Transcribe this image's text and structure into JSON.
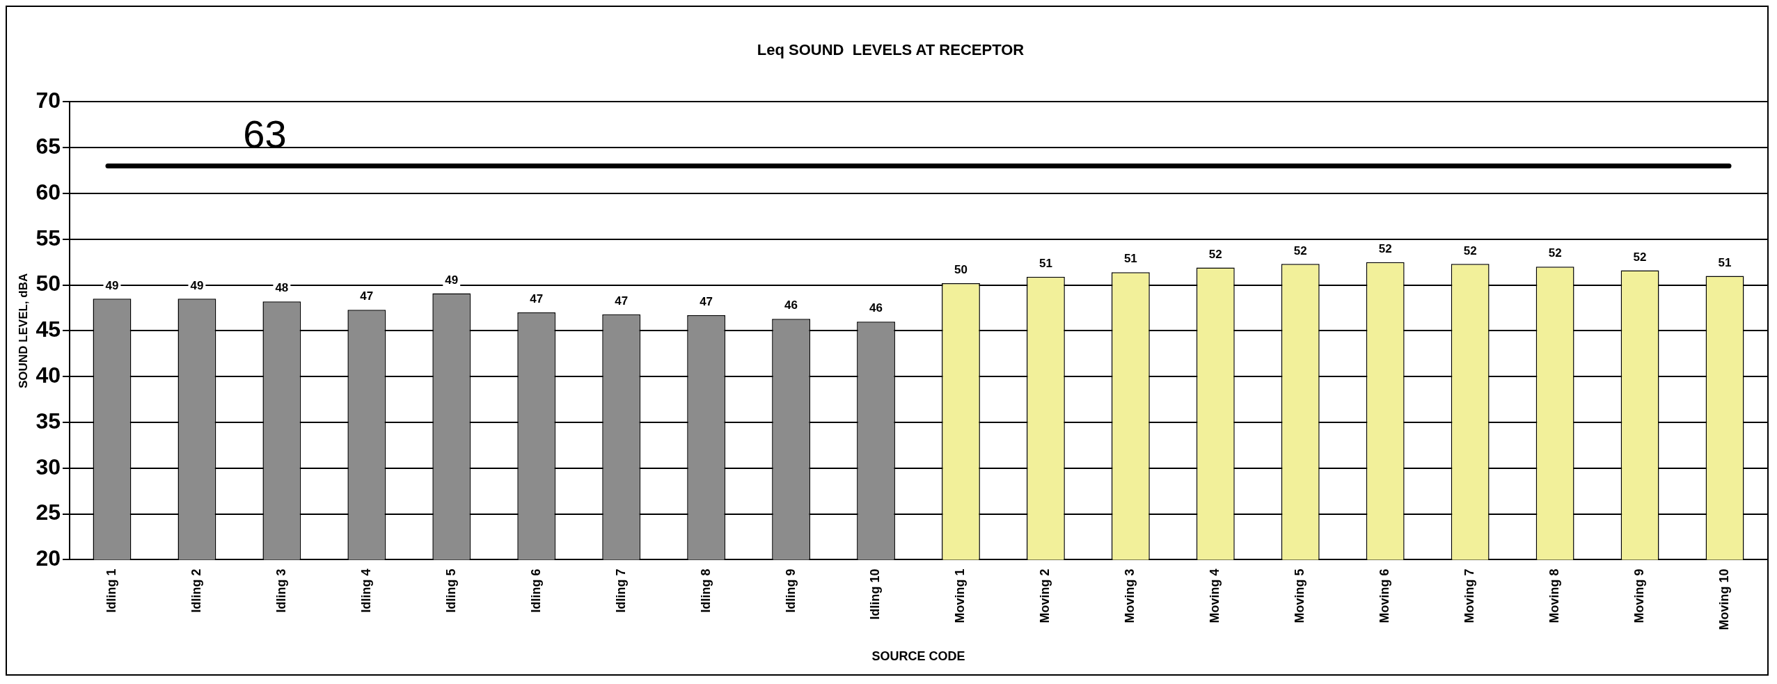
{
  "chart_data": {
    "type": "bar",
    "title": "Leq SOUND  LEVELS AT RECEPTOR",
    "xlabel": "SOURCE CODE",
    "ylabel": "SOUND LEVEL, dBA",
    "categories": [
      "Idling 1",
      "Idling 2",
      "Idling 3",
      "Idling 4",
      "Idling 5",
      "Idling 6",
      "Idling 7",
      "Idling 8",
      "Idling 9",
      "Idling 10",
      "Moving 1",
      "Moving 2",
      "Moving 3",
      "Moving 4",
      "Moving 5",
      "Moving 6",
      "Moving 7",
      "Moving 8",
      "Moving 9",
      "Moving 10"
    ],
    "values": [
      48.5,
      48.5,
      48.2,
      47.3,
      49.1,
      47.0,
      46.8,
      46.7,
      46.3,
      46.0,
      50.2,
      50.9,
      51.4,
      51.9,
      52.3,
      52.5,
      52.3,
      52.0,
      51.6,
      51.0
    ],
    "value_labels": [
      "49",
      "49",
      "48",
      "47",
      "49",
      "47",
      "47",
      "47",
      "46",
      "46",
      "50",
      "51",
      "51",
      "52",
      "52",
      "52",
      "52",
      "52",
      "52",
      "51"
    ],
    "colors": [
      "#8c8c8c",
      "#8c8c8c",
      "#8c8c8c",
      "#8c8c8c",
      "#8c8c8c",
      "#8c8c8c",
      "#8c8c8c",
      "#8c8c8c",
      "#8c8c8c",
      "#8c8c8c",
      "#f2f09a",
      "#f2f09a",
      "#f2f09a",
      "#f2f09a",
      "#f2f09a",
      "#f2f09a",
      "#f2f09a",
      "#f2f09a",
      "#f2f09a",
      "#f2f09a"
    ],
    "ylim": [
      20,
      70
    ],
    "yticks": [
      20,
      25,
      30,
      35,
      40,
      45,
      50,
      55,
      60,
      65,
      70
    ],
    "grid": "y",
    "legend": false,
    "ref_lines": [
      {
        "axis": "y",
        "value": 63,
        "label": "63",
        "color": "#000000"
      }
    ]
  }
}
